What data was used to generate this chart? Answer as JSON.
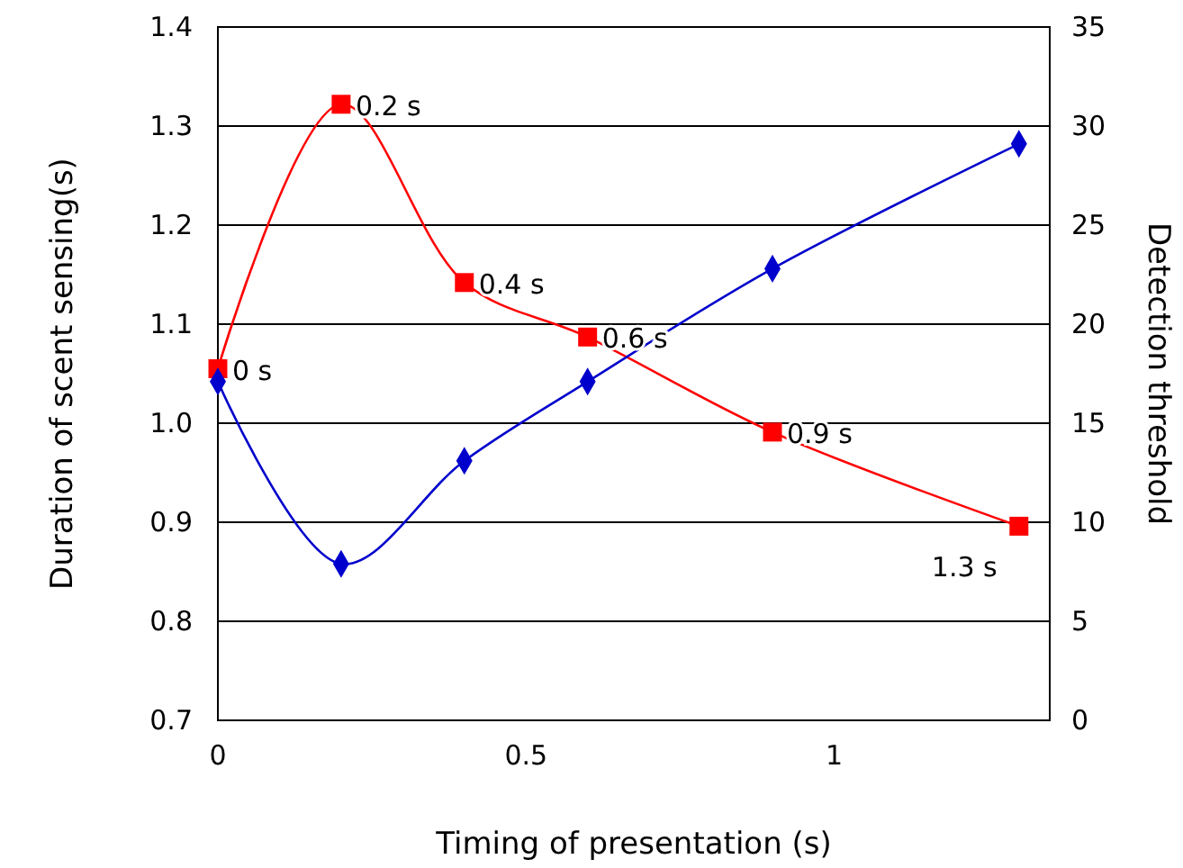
{
  "chart_data": {
    "type": "line",
    "xlabel": "Timing of presentation (s)",
    "ylabel": "Duration of scent sensing(s)",
    "y2label": "Detection threshold",
    "x": [
      0,
      0.2,
      0.4,
      0.6,
      0.9,
      1.3
    ],
    "xlim": [
      0,
      1.35
    ],
    "xticks": [
      0,
      0.5,
      1
    ],
    "ylim": [
      0.7,
      1.4
    ],
    "yticks": [
      {
        "value": 0.7,
        "label": "0.7"
      },
      {
        "value": 0.8,
        "label": "0.8"
      },
      {
        "value": 0.9,
        "label": "0.9"
      },
      {
        "value": 1.0,
        "label": "1.0"
      },
      {
        "value": 1.1,
        "label": "1.1"
      },
      {
        "value": 1.2,
        "label": "1.2"
      },
      {
        "value": 1.3,
        "label": "1.3"
      },
      {
        "value": 1.4,
        "label": "1.4"
      }
    ],
    "y2lim": [
      0,
      35
    ],
    "y2ticks": [
      0,
      5,
      10,
      15,
      20,
      25,
      30,
      35
    ],
    "grid": "y",
    "series": [
      {
        "color": "#ff0000",
        "marker": "square",
        "values": [
          1.055,
          1.322,
          1.142,
          1.087,
          0.991,
          0.896
        ]
      },
      {
        "color": "#0000cc",
        "marker": "diamond",
        "axis": "y2",
        "values": [
          17.1,
          7.9,
          13.1,
          17.1,
          22.8,
          29.1
        ]
      }
    ],
    "annotations": [
      {
        "text": "0 s",
        "x": 0,
        "y": 1.055
      },
      {
        "text": "0.2 s",
        "x": 0.2,
        "y": 1.322
      },
      {
        "text": "0.4 s",
        "x": 0.4,
        "y": 1.142
      },
      {
        "text": "0.6 s",
        "x": 0.6,
        "y": 1.087
      },
      {
        "text": "0.9 s",
        "x": 0.9,
        "y": 0.991
      },
      {
        "text": "1.3 s",
        "x": 1.3,
        "y": 0.896
      }
    ]
  }
}
